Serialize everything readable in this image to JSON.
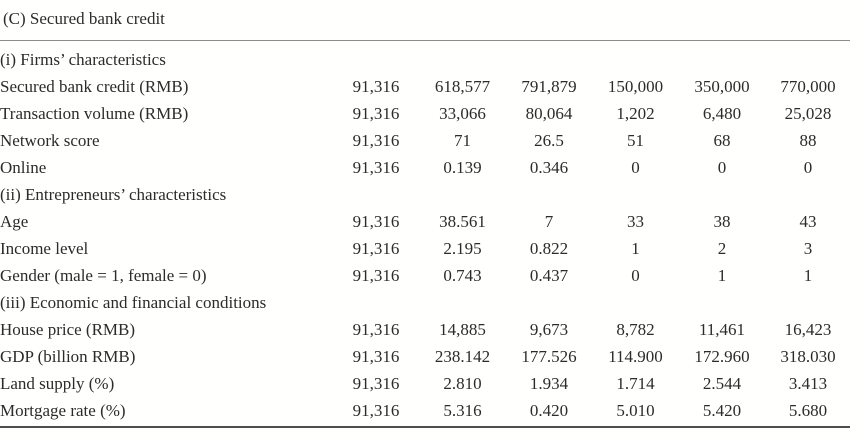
{
  "page": {
    "title": "(C) Secured bank credit"
  },
  "colors": {
    "text": "#2b2b2b",
    "top_rule": "#8c8c8c",
    "bottom_rule": "#4e4e4e",
    "background": "#fffffe"
  },
  "table": {
    "sections": [
      {
        "header": "(i) Firms’ characteristics",
        "rows": [
          {
            "label": "Secured bank credit (RMB)",
            "values": [
              "91,316",
              "618,577",
              "791,879",
              "150,000",
              "350,000",
              "770,000"
            ]
          },
          {
            "label": "Transaction volume (RMB)",
            "values": [
              "91,316",
              "33,066",
              "80,064",
              "1,202",
              "6,480",
              "25,028"
            ]
          },
          {
            "label": "Network score",
            "values": [
              "91,316",
              "71",
              "26.5",
              "51",
              "68",
              "88"
            ]
          },
          {
            "label": "Online",
            "values": [
              "91,316",
              "0.139",
              "0.346",
              "0",
              "0",
              "0"
            ]
          }
        ]
      },
      {
        "header": "(ii) Entrepreneurs’ characteristics",
        "rows": [
          {
            "label": "Age",
            "values": [
              "91,316",
              "38.561",
              "7",
              "33",
              "38",
              "43"
            ]
          },
          {
            "label": "Income level",
            "values": [
              "91,316",
              "2.195",
              "0.822",
              "1",
              "2",
              "3"
            ]
          },
          {
            "label": "Gender (male = 1, female = 0)",
            "values": [
              "91,316",
              "0.743",
              "0.437",
              "0",
              "1",
              "1"
            ]
          }
        ]
      },
      {
        "header": "(iii) Economic and financial conditions",
        "rows": [
          {
            "label": "House price (RMB)",
            "values": [
              "91,316",
              "14,885",
              "9,673",
              "8,782",
              "11,461",
              "16,423"
            ]
          },
          {
            "label": "GDP (billion RMB)",
            "values": [
              "91,316",
              "238.142",
              "177.526",
              "114.900",
              "172.960",
              "318.030"
            ]
          },
          {
            "label": "Land supply (%)",
            "values": [
              "91,316",
              "2.810",
              "1.934",
              "1.714",
              "2.544",
              "3.413"
            ]
          },
          {
            "label": "Mortgage rate (%)",
            "values": [
              "91,316",
              "5.316",
              "0.420",
              "5.010",
              "5.420",
              "5.680"
            ]
          }
        ]
      }
    ]
  }
}
